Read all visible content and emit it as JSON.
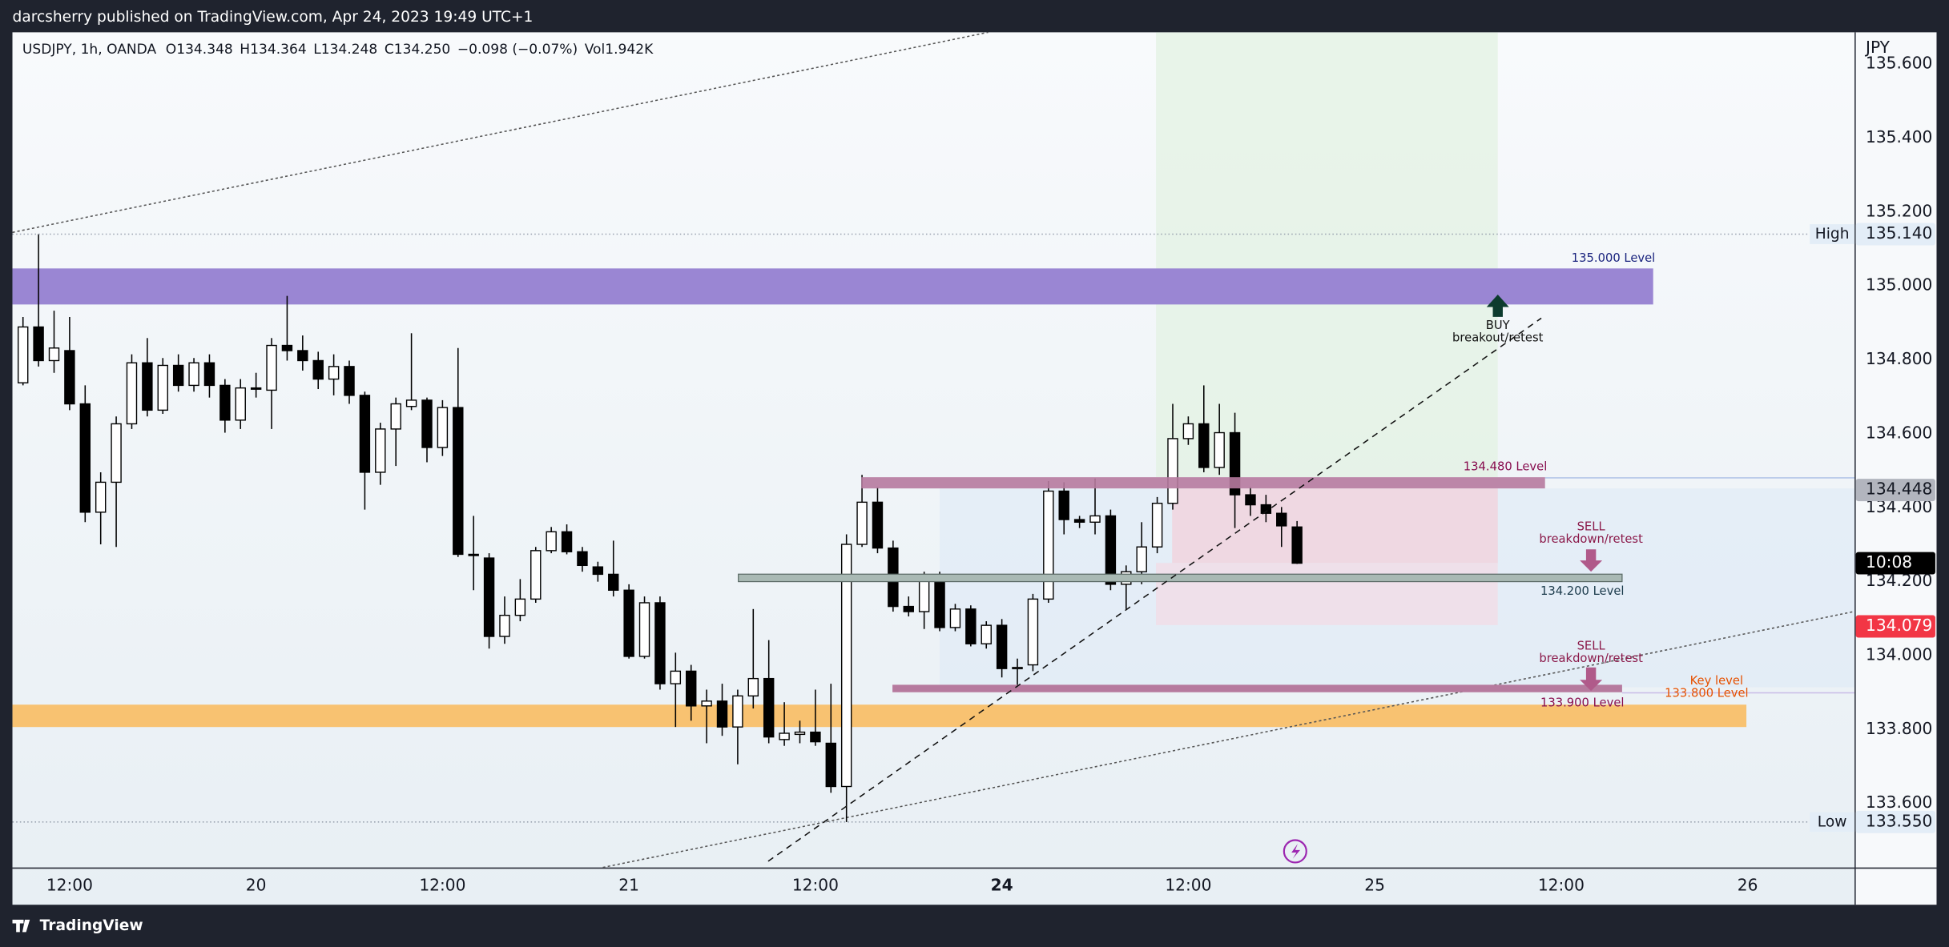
{
  "header": "darcsherry published on TradingView.com, Apr 24, 2023 19:49 UTC+1",
  "footer": "TradingView",
  "chart_data": {
    "type": "candlestick",
    "currency": "JPY",
    "legend": {
      "symbol": "USDJPY, 1h, OANDA",
      "open": "O134.348",
      "high": "H134.364",
      "low": "L134.248",
      "close": "C134.250",
      "change": "−0.098 (−0.07%)",
      "volume": "Vol1.942K"
    },
    "x": [
      -3,
      -2,
      -1,
      0,
      1,
      2,
      3,
      4,
      5,
      6,
      7,
      8,
      9,
      10,
      11,
      12,
      13,
      14,
      15,
      16,
      17,
      18,
      19,
      20,
      21,
      22,
      23,
      24,
      25,
      26,
      27,
      28,
      29,
      30,
      31,
      32,
      33,
      34,
      35,
      36,
      37,
      38,
      39,
      40,
      41,
      42,
      43,
      44,
      45,
      46,
      47,
      48,
      49,
      50,
      51,
      52,
      53,
      54,
      55,
      56,
      57,
      58,
      59,
      60,
      61,
      62,
      63,
      64,
      65,
      66,
      67,
      68,
      69,
      70,
      71,
      72,
      73,
      74,
      75,
      76,
      77,
      78,
      79
    ],
    "open": [
      134.738,
      134.889,
      134.798,
      134.825,
      134.681,
      134.388,
      134.469,
      134.627,
      134.792,
      134.664,
      134.785,
      134.731,
      134.792,
      134.731,
      134.637,
      134.724,
      134.718,
      134.839,
      134.825,
      134.798,
      134.748,
      134.782,
      134.704,
      134.496,
      134.613,
      134.674,
      134.691,
      134.563,
      134.671,
      134.274,
      134.264,
      134.052,
      134.109,
      134.153,
      134.284,
      134.335,
      134.281,
      134.24,
      134.22,
      134.177,
      133.998,
      134.143,
      133.924,
      133.958,
      133.864,
      133.877,
      133.807,
      133.891,
      133.938,
      133.773,
      133.787,
      133.793,
      133.763,
      133.646,
      134.301,
      134.415,
      134.291,
      134.133,
      134.119,
      134.217,
      134.076,
      134.126,
      134.032,
      134.082,
      133.965,
      133.975,
      134.153,
      134.445,
      134.368,
      134.361,
      134.378,
      134.193,
      134.227,
      134.294,
      134.412,
      134.587,
      134.627,
      134.509,
      134.603,
      134.435,
      134.408,
      134.385,
      134.348
    ],
    "high": [
      134.916,
      135.14,
      134.933,
      134.916,
      134.731,
      134.496,
      134.647,
      134.815,
      134.859,
      134.805,
      134.815,
      134.805,
      134.815,
      134.748,
      134.748,
      134.765,
      134.859,
      134.973,
      134.866,
      134.822,
      134.815,
      134.798,
      134.714,
      134.63,
      134.698,
      134.872,
      134.698,
      134.691,
      134.832,
      134.378,
      134.277,
      134.16,
      134.207,
      134.294,
      134.348,
      134.355,
      134.294,
      134.254,
      134.311,
      134.193,
      134.16,
      134.16,
      134.008,
      133.975,
      133.908,
      133.924,
      133.908,
      134.126,
      134.042,
      133.874,
      133.824,
      133.908,
      133.924,
      134.328,
      134.489,
      134.456,
      134.311,
      134.16,
      134.227,
      134.227,
      134.14,
      134.136,
      134.093,
      134.099,
      133.992,
      134.167,
      134.472,
      134.469,
      134.378,
      134.479,
      134.395,
      134.244,
      134.361,
      134.429,
      134.681,
      134.647,
      134.731,
      134.681,
      134.657,
      134.456,
      134.435,
      134.402,
      134.364
    ],
    "low": [
      134.731,
      134.782,
      134.765,
      134.664,
      134.361,
      134.301,
      134.294,
      134.613,
      134.647,
      134.654,
      134.714,
      134.714,
      134.698,
      134.603,
      134.613,
      134.698,
      134.613,
      134.798,
      134.771,
      134.721,
      134.704,
      134.681,
      134.395,
      134.462,
      134.513,
      134.664,
      134.523,
      134.54,
      134.267,
      134.177,
      134.019,
      134.032,
      134.093,
      134.143,
      134.277,
      134.274,
      134.227,
      134.2,
      134.16,
      133.992,
      133.992,
      133.908,
      133.807,
      133.824,
      133.763,
      133.783,
      133.706,
      133.857,
      133.763,
      133.756,
      133.763,
      133.756,
      133.629,
      133.55,
      134.294,
      134.277,
      134.119,
      134.106,
      134.072,
      134.066,
      134.066,
      134.025,
      134.019,
      133.941,
      133.908,
      133.958,
      134.143,
      134.328,
      134.345,
      134.328,
      134.177,
      134.126,
      134.193,
      134.277,
      134.395,
      134.57,
      134.496,
      134.489,
      134.345,
      134.378,
      134.361,
      134.294,
      134.248
    ],
    "close": [
      134.889,
      134.798,
      134.832,
      134.681,
      134.388,
      134.469,
      134.627,
      134.792,
      134.664,
      134.785,
      134.731,
      134.792,
      134.731,
      134.637,
      134.724,
      134.721,
      134.839,
      134.825,
      134.798,
      134.748,
      134.782,
      134.704,
      134.496,
      134.613,
      134.681,
      134.691,
      134.563,
      134.671,
      134.274,
      134.271,
      134.052,
      134.109,
      134.153,
      134.284,
      134.335,
      134.281,
      134.244,
      134.22,
      134.177,
      133.998,
      134.143,
      133.924,
      133.958,
      133.864,
      133.877,
      133.807,
      133.891,
      133.938,
      133.78,
      133.79,
      133.793,
      133.767,
      133.646,
      134.301,
      134.415,
      134.291,
      134.133,
      134.119,
      134.217,
      134.076,
      134.126,
      134.032,
      134.082,
      133.965,
      133.968,
      134.153,
      134.445,
      134.368,
      134.361,
      134.378,
      134.193,
      134.227,
      134.294,
      134.412,
      134.587,
      134.627,
      134.509,
      134.603,
      134.435,
      134.408,
      134.385,
      134.351,
      134.25
    ],
    "up_color": "#ffffff",
    "down_color": "#000000",
    "wick_color": "#000000",
    "xlim": [
      -3.68,
      114.88
    ],
    "xticks": [
      {
        "value": 0,
        "label": "12:00"
      },
      {
        "value": 12,
        "label": "20"
      },
      {
        "value": 24,
        "label": "12:00"
      },
      {
        "value": 36,
        "label": "21"
      },
      {
        "value": 48,
        "label": "12:00"
      },
      {
        "value": 60,
        "label": "24"
      },
      {
        "value": 72,
        "label": "12:00"
      },
      {
        "value": 84,
        "label": "25"
      },
      {
        "value": 96,
        "label": "12:00"
      },
      {
        "value": 108,
        "label": "26"
      }
    ],
    "ylim": [
      133.427,
      135.686
    ],
    "yticks": [
      {
        "value": 135.6,
        "label": "135.600"
      },
      {
        "value": 135.4,
        "label": "135.400"
      },
      {
        "value": 135.2,
        "label": "135.200"
      },
      {
        "value": 135.0,
        "label": "135.000"
      },
      {
        "value": 134.8,
        "label": "134.800"
      },
      {
        "value": 134.6,
        "label": "134.600"
      },
      {
        "value": 134.4,
        "label": "134.400"
      },
      {
        "value": 134.2,
        "label": "134.200"
      },
      {
        "value": 134.0,
        "label": "134.000"
      },
      {
        "value": 133.8,
        "label": "133.800"
      },
      {
        "value": 133.6,
        "label": "133.600"
      }
    ],
    "grid": false,
    "price_labels": [
      {
        "name": "High",
        "value": 135.14,
        "label": "135.140",
        "color": "#e3edf7",
        "text_color": "#131722"
      },
      {
        "value": 134.448,
        "label": "134.448",
        "color": "#b2b5be",
        "text_color": "#131722"
      },
      {
        "value": 134.079,
        "label": "134.079",
        "color": "#f23645",
        "text_color": "#ffffff"
      },
      {
        "name": "Low",
        "value": 133.55,
        "label": "133.550",
        "color": "#e3edf7",
        "text_color": "#131722"
      }
    ],
    "countdown": "10:08",
    "annotations": [
      "135.000 Level",
      "BUY",
      "breakout/retest",
      "134.480 Level",
      "SELL",
      "breakdown/retest",
      "134.200 Level",
      "SELL",
      "breakdown/retest",
      "Key level",
      "133.800 Level",
      "133.900 Level"
    ]
  }
}
